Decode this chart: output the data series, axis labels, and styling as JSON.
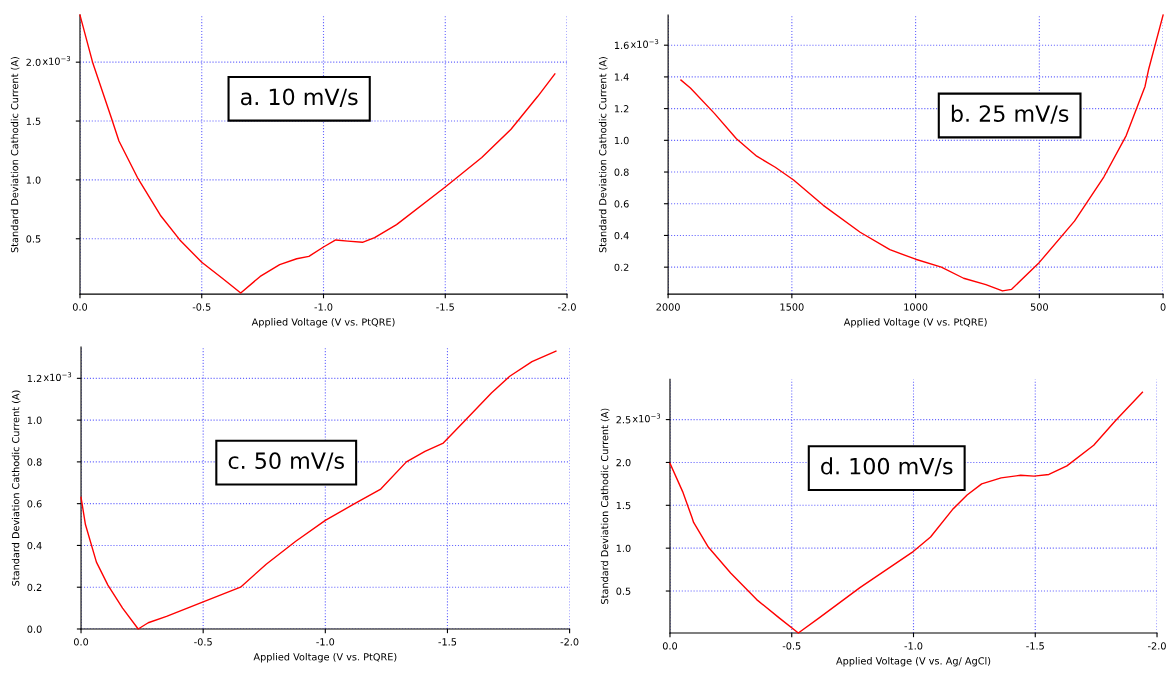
{
  "chart_data": [
    {
      "type": "line",
      "xlabel": "Applied Voltage (V vs. PtQRE)",
      "ylabel": "Standard Deviation Cathodic Current (A)",
      "annotations": [
        "a. 10 mV/s",
        "x10$^{−3}$"
      ],
      "xlim": [
        0,
        -2.0
      ],
      "xticks": [
        {
          "value": 0,
          "label": "0.0"
        },
        -0.5,
        {
          "value": -1,
          "label": "-1.0"
        },
        -1.5,
        {
          "value": -2,
          "label": "-2.0"
        }
      ],
      "ylim": [
        0.03,
        2.4
      ],
      "yticks": [
        0.5,
        {
          "value": 1,
          "label": "1.0"
        },
        1.5,
        {
          "value": 2,
          "label": "2.0"
        }
      ],
      "grid": true,
      "series": [
        {
          "color": "#ff0000",
          "x": [
            0,
            -0.053,
            -0.13,
            -0.16,
            -0.236,
            -0.33,
            -0.41,
            -0.5,
            -0.587,
            -0.66,
            -0.74,
            -0.82,
            -0.89,
            -0.94,
            -1.0,
            -1.05,
            -1.1,
            -1.16,
            -1.21,
            -1.3,
            -1.5,
            -1.65,
            -1.77,
            -1.88,
            -1.95
          ],
          "values": [
            2.4,
            1.99,
            1.52,
            1.33,
            1.02,
            0.7,
            0.49,
            0.3,
            0.16,
            0.04,
            0.18,
            0.28,
            0.33,
            0.35,
            0.43,
            0.49,
            0.48,
            0.47,
            0.51,
            0.62,
            0.94,
            1.19,
            1.43,
            1.71,
            1.9
          ]
        }
      ]
    },
    {
      "type": "line",
      "xlabel": "Applied Voltage (V vs. PtQRE)",
      "ylabel": "Standard Deviation Cathodic Current (A)",
      "annotations": [
        "b. 25 mV/s",
        "x10$^{−3}$"
      ],
      "xlim": [
        2000,
        0
      ],
      "xticks": [
        2000,
        1500,
        1000,
        500,
        0
      ],
      "ylim": [
        0.03,
        1.79
      ],
      "yticks": [
        0.2,
        0.4,
        0.6,
        0.8,
        {
          "value": 1,
          "label": "1.0"
        },
        1.2,
        1.4,
        1.6
      ],
      "grid": true,
      "series": [
        {
          "color": "#ff0000",
          "x": [
            1948,
            1910,
            1813,
            1724,
            1642,
            1567,
            1493,
            1373,
            1224,
            1104,
            1000,
            896,
            806,
            716,
            649,
            612,
            500,
            358,
            239,
            149,
            73,
            58,
            0
          ],
          "values": [
            1.38,
            1.33,
            1.17,
            1.01,
            0.9,
            0.83,
            0.75,
            0.59,
            0.42,
            0.31,
            0.25,
            0.2,
            0.13,
            0.09,
            0.05,
            0.06,
            0.23,
            0.49,
            0.77,
            1.03,
            1.34,
            1.45,
            1.79
          ]
        }
      ]
    },
    {
      "type": "line",
      "xlabel": "Applied Voltage (V vs. PtQRE)",
      "ylabel": "Standard Deviation Cathodic Current (A)",
      "annotations": [
        "c. 50 mV/s",
        "x10$^{−3}$"
      ],
      "xlim": [
        0,
        -2.0
      ],
      "xticks": [
        {
          "value": 0,
          "label": "0.0"
        },
        -0.5,
        {
          "value": -1,
          "label": "-1.0"
        },
        -1.5,
        {
          "value": -2,
          "label": "-2.0"
        }
      ],
      "ylim": [
        0,
        1.35
      ],
      "yticks": [
        {
          "value": 0,
          "label": "0.0"
        },
        0.2,
        0.4,
        0.6,
        0.8,
        {
          "value": 1,
          "label": "1.0"
        },
        1.2
      ],
      "grid": true,
      "series": [
        {
          "color": "#ff0000",
          "x": [
            0,
            -0.018,
            -0.063,
            -0.11,
            -0.17,
            -0.234,
            -0.275,
            -0.35,
            -0.5,
            -0.653,
            -0.758,
            -0.879,
            -1.0,
            -1.12,
            -1.227,
            -1.332,
            -1.408,
            -1.483,
            -1.574,
            -1.68,
            -1.755,
            -1.846,
            -1.944
          ],
          "values": [
            0.63,
            0.5,
            0.32,
            0.21,
            0.1,
            0.0,
            0.03,
            0.06,
            0.13,
            0.2,
            0.31,
            0.42,
            0.52,
            0.6,
            0.67,
            0.8,
            0.85,
            0.89,
            1.0,
            1.13,
            1.21,
            1.28,
            1.33
          ]
        }
      ]
    },
    {
      "type": "line",
      "xlabel": "Applied Voltage (V vs. Ag/ AgCl)",
      "ylabel": "Standard Deviation Cathodic Current (A)",
      "annotations": [
        "d. 100 mV/s",
        "x10$^{−3}$"
      ],
      "xlim": [
        0,
        -2.0
      ],
      "xticks": [
        {
          "value": 0,
          "label": "0.0"
        },
        -0.5,
        {
          "value": -1,
          "label": "-1.0"
        },
        -1.5,
        {
          "value": -2,
          "label": "-2.0"
        }
      ],
      "ylim": [
        0.01,
        2.97
      ],
      "yticks": [
        0.5,
        {
          "value": 1,
          "label": "1.0"
        },
        1.5,
        {
          "value": 2,
          "label": "2.0"
        },
        2.5
      ],
      "grid": true,
      "series": [
        {
          "color": "#ff0000",
          "x": [
            0,
            -0.052,
            -0.09,
            -0.097,
            -0.158,
            -0.249,
            -0.356,
            -0.447,
            -0.527,
            -0.614,
            -0.78,
            -0.994,
            -1.07,
            -1.16,
            -1.22,
            -1.28,
            -1.36,
            -1.44,
            -1.495,
            -1.556,
            -1.63,
            -1.74,
            -1.83,
            -1.94
          ],
          "values": [
            1.99,
            1.66,
            1.36,
            1.3,
            1.01,
            0.71,
            0.4,
            0.19,
            0.01,
            0.19,
            0.54,
            0.95,
            1.13,
            1.45,
            1.62,
            1.75,
            1.82,
            1.85,
            1.84,
            1.86,
            1.96,
            2.2,
            2.49,
            2.82
          ]
        }
      ]
    }
  ]
}
